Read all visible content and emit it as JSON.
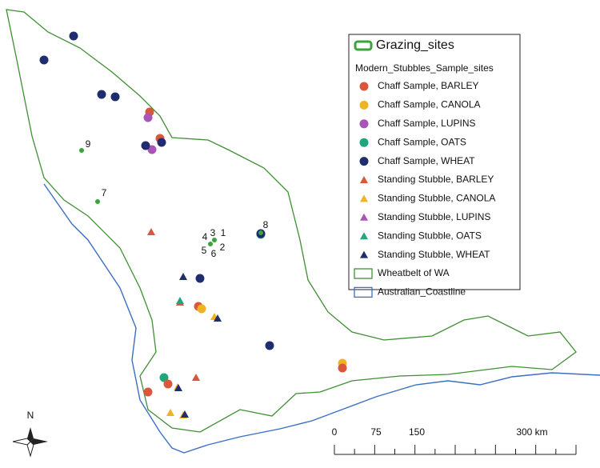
{
  "legend": {
    "title": "Grazing_sites",
    "subtitle": "Modern_Stubbles_Sample_sites",
    "items": [
      "Chaff Sample, BARLEY",
      "Chaff Sample, CANOLA",
      "Chaff Sample, LUPINS",
      "Chaff Sample, OATS",
      "Chaff Sample, WHEAT",
      "Standing Stubble, BARLEY",
      "Standing Stubble, CANOLA",
      "Standing Stubble, LUPINS",
      "Standing Stubble, OATS",
      "Standing Stubble, WHEAT",
      "Wheatbelt of WA",
      "Australian_Coastline"
    ]
  },
  "site_labels": [
    "1",
    "2",
    "3",
    "4",
    "5",
    "6",
    "7",
    "8",
    "9"
  ],
  "scale_bar": {
    "labels": [
      "0",
      "75",
      "150",
      "300 km"
    ]
  },
  "north_arrow": "N"
}
